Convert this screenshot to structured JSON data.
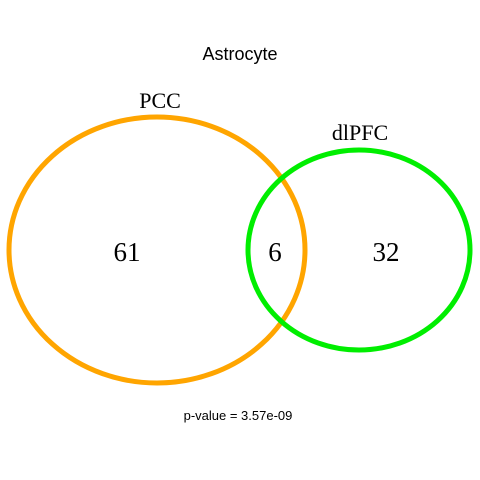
{
  "title": "Astrocyte",
  "sets": [
    {
      "name": "PCC",
      "color": "#FFA500"
    },
    {
      "name": "dlPFC",
      "color": "#00EE00"
    }
  ],
  "counts": {
    "only_pcc": "61",
    "both": "6",
    "only_dlpfc": "32"
  },
  "p_value_text": "p-value = 3.57e-09"
}
